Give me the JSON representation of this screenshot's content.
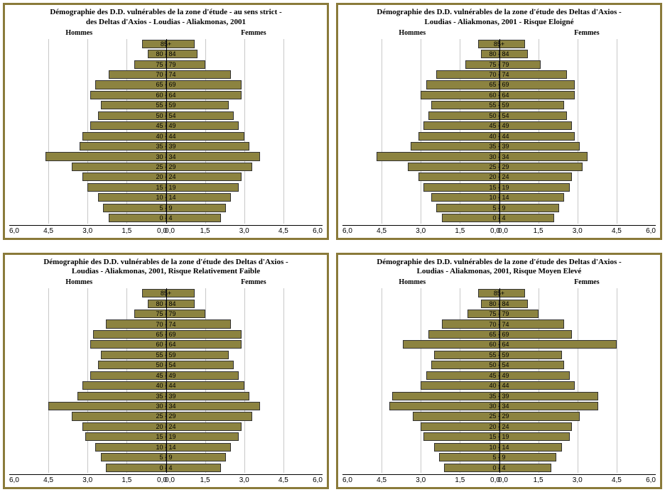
{
  "colors": {
    "panel_border": "#8a7a3a",
    "bar_fill": "#8c8340",
    "bar_border": "#333333",
    "gridline": "#c8c8c8",
    "background": "#ffffff",
    "text": "#000000"
  },
  "xaxis": {
    "min": -6.0,
    "max": 6.0,
    "ticks": [
      -6.0,
      -4.5,
      -3.0,
      -1.5,
      0.0,
      0.0,
      1.5,
      3.0,
      4.5,
      6.0
    ],
    "tick_labels_left": [
      "6,0",
      "4,5",
      "3,0",
      "1,5",
      "0,0"
    ],
    "tick_labels_right": [
      "0,0",
      "1,5",
      "3,0",
      "4,5",
      "6,0"
    ]
  },
  "age_labels": [
    "85+",
    "80 - 84",
    "75 - 79",
    "70 - 74",
    "65 - 69",
    "60 - 64",
    "55 - 59",
    "50 - 54",
    "45 - 49",
    "40 - 44",
    "35 - 39",
    "30 - 34",
    "25 - 29",
    "20 - 24",
    "15 - 19",
    "10 - 14",
    "5 - 9",
    "0 - 4"
  ],
  "side_labels": {
    "left": "Hommes",
    "right": "Femmes"
  },
  "panels": [
    {
      "title": "Démographie des D.D. vulnérables de la zone d'étude - au sens strict -\ndes Deltas d'Axios - Loudias - Aliakmonas, 2001",
      "hommes": [
        0.9,
        0.7,
        1.2,
        2.2,
        2.7,
        2.9,
        2.5,
        2.6,
        2.9,
        3.2,
        3.3,
        4.6,
        3.6,
        3.2,
        3.0,
        2.6,
        2.4,
        2.2
      ],
      "femmes": [
        1.1,
        1.2,
        1.5,
        2.5,
        2.9,
        2.9,
        2.4,
        2.6,
        2.8,
        3.0,
        3.2,
        3.6,
        3.3,
        2.9,
        2.8,
        2.5,
        2.3,
        2.1
      ]
    },
    {
      "title": "Démographie des D.D. vulnérables de la zone d'étude des Deltas d'Axios -\nLoudias - Aliakmonas, 2001 - Risque Eloigné",
      "hommes": [
        0.8,
        0.7,
        1.3,
        2.4,
        2.8,
        3.0,
        2.6,
        2.7,
        2.9,
        3.1,
        3.4,
        4.7,
        3.5,
        3.1,
        2.9,
        2.6,
        2.4,
        2.2
      ],
      "femmes": [
        1.0,
        1.1,
        1.6,
        2.6,
        2.9,
        2.9,
        2.5,
        2.6,
        2.8,
        2.9,
        3.1,
        3.4,
        3.2,
        2.8,
        2.7,
        2.5,
        2.3,
        2.1
      ]
    },
    {
      "title": "Démographie des D.D. vulnérables de la zone d'étude des Deltas d'Axios -\nLoudias - Aliakmonas, 2001, Risque Relativement Faible",
      "hommes": [
        0.9,
        0.7,
        1.2,
        2.3,
        2.8,
        2.9,
        2.5,
        2.6,
        2.9,
        3.2,
        3.4,
        4.5,
        3.6,
        3.2,
        3.1,
        2.7,
        2.5,
        2.3
      ],
      "femmes": [
        1.1,
        1.1,
        1.5,
        2.5,
        2.9,
        2.9,
        2.4,
        2.6,
        2.8,
        3.0,
        3.2,
        3.6,
        3.3,
        2.9,
        2.8,
        2.5,
        2.3,
        2.1
      ]
    },
    {
      "title": "Démographie des D.D. vulnérables de la zone d'étude des Deltas d'Axios -\nLoudias - Aliakmonas, 2001, Risque Moyen Elevé",
      "hommes": [
        0.8,
        0.7,
        1.2,
        2.2,
        2.7,
        3.7,
        2.5,
        2.6,
        2.8,
        3.0,
        4.1,
        4.2,
        3.3,
        3.0,
        2.9,
        2.5,
        2.3,
        2.1
      ],
      "femmes": [
        1.0,
        1.1,
        1.5,
        2.5,
        2.8,
        4.5,
        2.4,
        2.5,
        2.7,
        2.9,
        3.8,
        3.8,
        3.1,
        2.8,
        2.7,
        2.4,
        2.2,
        2.0
      ]
    }
  ]
}
